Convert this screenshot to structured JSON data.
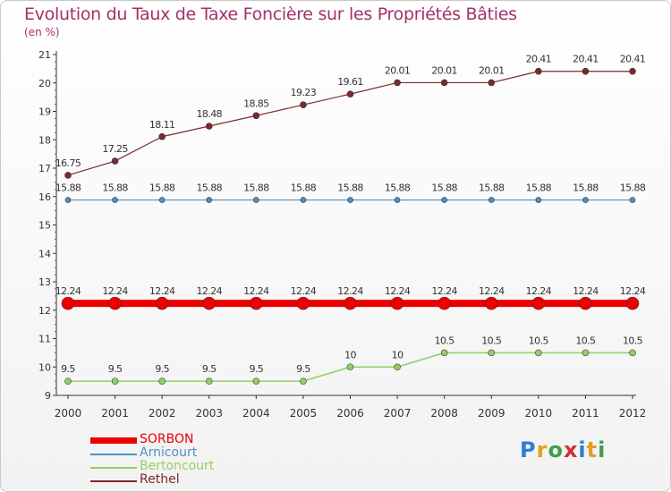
{
  "chart_data": {
    "type": "line",
    "title": "Evolution du Taux de Taxe Foncière sur les Propriétés Bâties",
    "unit_label": "(en %)",
    "x": [
      "2000",
      "2001",
      "2002",
      "2003",
      "2004",
      "2005",
      "2006",
      "2007",
      "2008",
      "2009",
      "2010",
      "2011",
      "2012"
    ],
    "y_ticks": [
      "9",
      "10",
      "11",
      "12",
      "13",
      "14",
      "15",
      "16",
      "17",
      "18",
      "19",
      "20",
      "21"
    ],
    "ylim": [
      9,
      21
    ],
    "series": [
      {
        "name": "SORBON",
        "color": "#ee0000",
        "values": [
          12.24,
          12.24,
          12.24,
          12.24,
          12.24,
          12.24,
          12.24,
          12.24,
          12.24,
          12.24,
          12.24,
          12.24,
          12.24
        ],
        "labels": [
          "12.24",
          "12.24",
          "12.24",
          "12.24",
          "12.24",
          "12.24",
          "12.24",
          "12.24",
          "12.24",
          "12.24",
          "12.24",
          "12.24",
          "12.24"
        ]
      },
      {
        "name": "Arnicourt",
        "color": "#4f90c3",
        "values": [
          15.88,
          15.88,
          15.88,
          15.88,
          15.88,
          15.88,
          15.88,
          15.88,
          15.88,
          15.88,
          15.88,
          15.88,
          15.88
        ],
        "labels": [
          "15.88",
          "15.88",
          "15.88",
          "15.88",
          "15.88",
          "15.88",
          "15.88",
          "15.88",
          "15.88",
          "15.88",
          "15.88",
          "15.88",
          "15.88"
        ]
      },
      {
        "name": "Bertoncourt",
        "color": "#8fd167",
        "values": [
          9.5,
          9.5,
          9.5,
          9.5,
          9.5,
          9.5,
          10,
          10,
          10.5,
          10.5,
          10.5,
          10.5,
          10.5
        ],
        "labels": [
          "9.5",
          "9.5",
          "9.5",
          "9.5",
          "9.5",
          "9.5",
          "10",
          "10",
          "10.5",
          "10.5",
          "10.5",
          "10.5",
          "10.5"
        ]
      },
      {
        "name": "Rethel",
        "color": "#7a2a2e",
        "values": [
          16.75,
          17.25,
          18.11,
          18.48,
          18.85,
          19.23,
          19.61,
          20.01,
          20.01,
          20.01,
          20.41,
          20.41,
          20.41
        ],
        "labels": [
          "16.75",
          "17.25",
          "18.11",
          "18.48",
          "18.85",
          "19.23",
          "19.61",
          "20.01",
          "20.01",
          "20.01",
          "20.41",
          "20.41",
          "20.41"
        ]
      }
    ]
  },
  "legend": [
    {
      "label": "SORBON",
      "color": "#ee0000"
    },
    {
      "label": "Arnicourt",
      "color": "#4f90c3"
    },
    {
      "label": "Bertoncourt",
      "color": "#8fd167"
    },
    {
      "label": "Rethel",
      "color": "#7a2a2e"
    }
  ],
  "logo": {
    "text": "Proxiti",
    "letters": [
      "P",
      "r",
      "o",
      "x",
      "i",
      "t",
      "i"
    ],
    "colors": [
      "#2a7fd4",
      "#e0a020",
      "#3aa04a",
      "#d03030",
      "#2a7fd4",
      "#e0a020",
      "#3aa04a"
    ]
  }
}
